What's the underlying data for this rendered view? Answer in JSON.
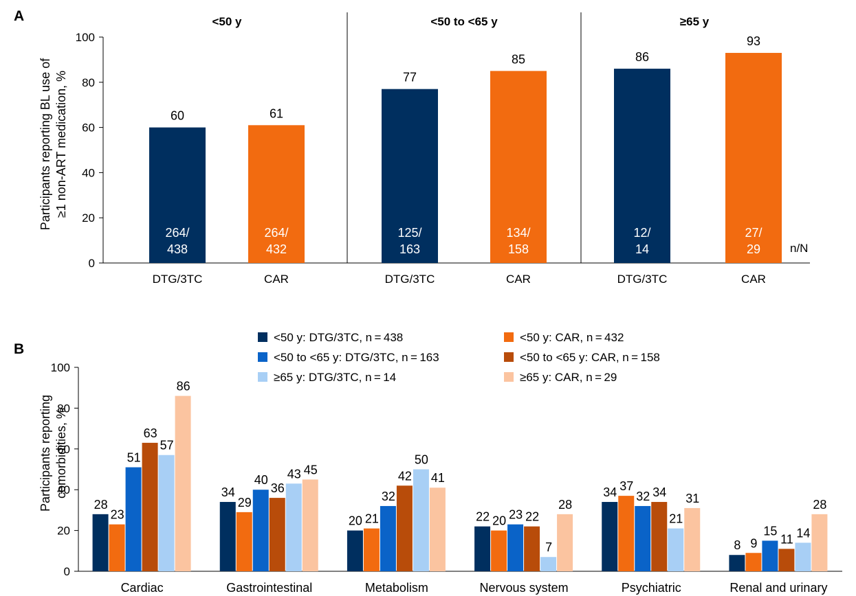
{
  "panels": [
    {
      "letter": "A",
      "ylabel_line1": "Participants reporting BL use of",
      "ylabel_line2": "≥1 non-ART medication, %",
      "nN_label": "n/N",
      "yticks": [
        "0",
        "20",
        "40",
        "60",
        "80",
        "100"
      ]
    },
    {
      "letter": "B",
      "ylabel_line1": "Participants reporting",
      "ylabel_line2": "comorbidities, %",
      "yticks": [
        "0",
        "20",
        "40",
        "60",
        "80",
        "100"
      ]
    }
  ],
  "colors": {
    "dtg_lt50": "#002f5f",
    "car_lt50": "#f26b10",
    "dtg_50to65": "#0a63c8",
    "car_50to65": "#b84c0a",
    "dtg_ge65": "#a8cff5",
    "car_ge65": "#fbc4a0"
  },
  "chart_data": [
    {
      "type": "bar",
      "panel": "A",
      "ylim": [
        0,
        100
      ],
      "groups": [
        {
          "title": "<50 y",
          "bars": [
            {
              "category": "DTG/3TC",
              "value": 60,
              "value_label": "60",
              "n": "264/",
              "N": "438"
            },
            {
              "category": "CAR",
              "value": 61,
              "value_label": "61",
              "n": "264/",
              "N": "432"
            }
          ]
        },
        {
          "title": "<50 to <65 y",
          "bars": [
            {
              "category": "DTG/3TC",
              "value": 77,
              "value_label": "77",
              "n": "125/",
              "N": "163"
            },
            {
              "category": "CAR",
              "value": 85,
              "value_label": "85",
              "n": "134/",
              "N": "158"
            }
          ]
        },
        {
          "title": "≥65 y",
          "bars": [
            {
              "category": "DTG/3TC",
              "value": 86,
              "value_label": "86",
              "n": "12/",
              "N": "14"
            },
            {
              "category": "CAR",
              "value": 93,
              "value_label": "93",
              "n": "27/",
              "N": "29"
            }
          ]
        }
      ]
    },
    {
      "type": "bar",
      "panel": "B",
      "ylim": [
        0,
        100
      ],
      "legend_placement": "top",
      "categories": [
        "Cardiac",
        "Gastrointestinal",
        "Metabolism",
        "Nervous system",
        "Psychiatric",
        "Renal and urinary"
      ],
      "series": [
        {
          "name": "<50 y: DTG/3TC, n = 438",
          "values": [
            28,
            34,
            20,
            22,
            34,
            8
          ]
        },
        {
          "name": "<50 y: CAR, n = 432",
          "values": [
            23,
            29,
            21,
            20,
            37,
            9
          ]
        },
        {
          "name": "<50 to <65 y: DTG/3TC, n = 163",
          "values": [
            51,
            40,
            32,
            23,
            32,
            15
          ]
        },
        {
          "name": "<50 to <65 y: CAR, n = 158",
          "values": [
            63,
            36,
            42,
            22,
            34,
            11
          ]
        },
        {
          "name": "≥65 y: DTG/3TC, n = 14",
          "values": [
            57,
            43,
            50,
            7,
            21,
            14
          ]
        },
        {
          "name": "≥65 y: CAR, n = 29",
          "values": [
            86,
            45,
            41,
            28,
            31,
            28
          ]
        }
      ]
    }
  ]
}
